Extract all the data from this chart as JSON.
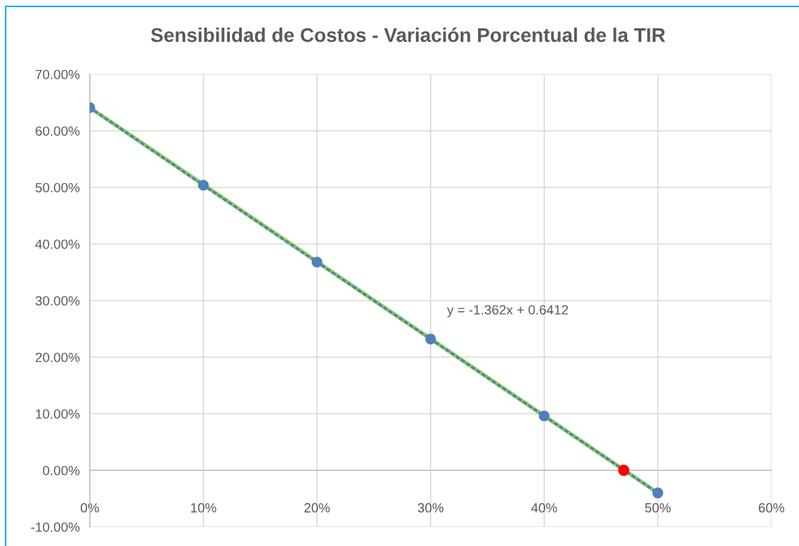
{
  "chart_data": {
    "type": "line",
    "title": "Sensibilidad de Costos - Variación Porcentual de la TIR",
    "annotations": [
      "y = -1.362x + 0.6412"
    ],
    "series": [
      {
        "color": "#92d050",
        "x": [
          0,
          0.5
        ],
        "values": [
          0.641,
          -0.04
        ],
        "line_style": "solid",
        "marker": "none"
      },
      {
        "color": "#4f81bd",
        "x": [
          0,
          0.1,
          0.2,
          0.3,
          0.4,
          0.5
        ],
        "values": [
          0.641,
          0.504,
          0.368,
          0.232,
          0.096,
          -0.04
        ],
        "line_style": "dotted",
        "marker": "circle"
      },
      {
        "type": "scatter",
        "color": "#ff0000",
        "x": [
          0.47
        ],
        "values": [
          0.0
        ],
        "marker": "circle"
      }
    ],
    "xlim": [
      0,
      0.6
    ],
    "xticks": [
      {
        "value": 0,
        "label": "0%"
      },
      {
        "value": 0.1,
        "label": "10%"
      },
      {
        "value": 0.2,
        "label": "20%"
      },
      {
        "value": 0.3,
        "label": "30%"
      },
      {
        "value": 0.4,
        "label": "40%"
      },
      {
        "value": 0.5,
        "label": "50%"
      },
      {
        "value": 0.6,
        "label": "60%"
      }
    ],
    "ylim": [
      -0.1,
      0.7
    ],
    "yticks": [
      {
        "value": -0.1,
        "label": "-10.00%"
      },
      {
        "value": 0,
        "label": "0.00%"
      },
      {
        "value": 0.1,
        "label": "10.00%"
      },
      {
        "value": 0.2,
        "label": "20.00%"
      },
      {
        "value": 0.3,
        "label": "30.00%"
      },
      {
        "value": 0.4,
        "label": "40.00%"
      },
      {
        "value": 0.5,
        "label": "50.00%"
      },
      {
        "value": 0.6,
        "label": "60.00%"
      },
      {
        "value": 0.7,
        "label": "70.00%"
      }
    ],
    "grid": true
  }
}
